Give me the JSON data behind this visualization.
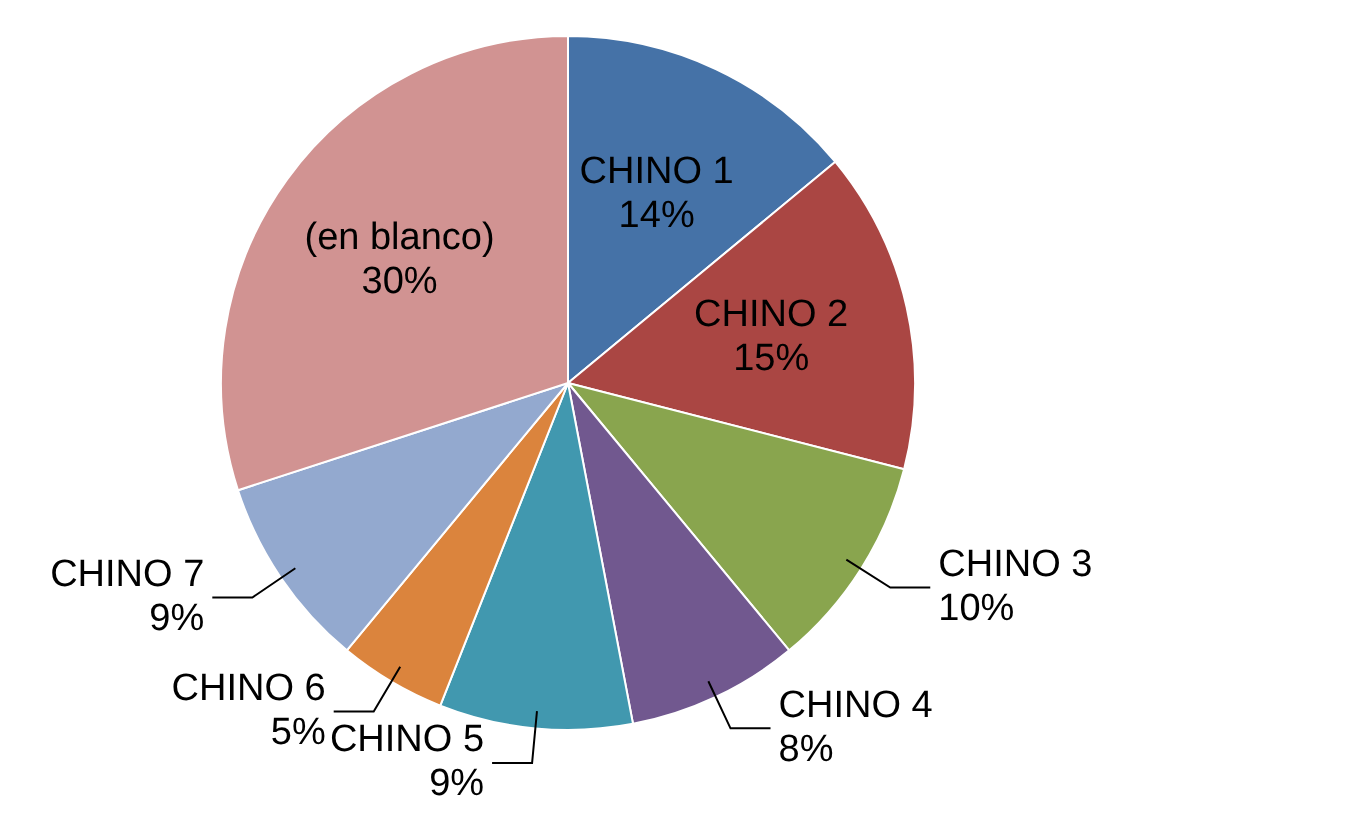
{
  "chart_data": {
    "type": "pie",
    "categories": [
      "CHINO 1",
      "CHINO 2",
      "CHINO 3",
      "CHINO 4",
      "CHINO 5",
      "CHINO 6",
      "CHINO 7",
      "(en blanco)"
    ],
    "values": [
      14,
      15,
      10,
      8,
      9,
      5,
      9,
      30
    ],
    "value_labels": [
      "14%",
      "15%",
      "10%",
      "8%",
      "9%",
      "5%",
      "9%",
      "30%"
    ],
    "colors": [
      "#4572a7",
      "#aa4643",
      "#89a54e",
      "#71588f",
      "#4198af",
      "#db843d",
      "#93a9cf",
      "#d19392"
    ],
    "legend": false
  }
}
